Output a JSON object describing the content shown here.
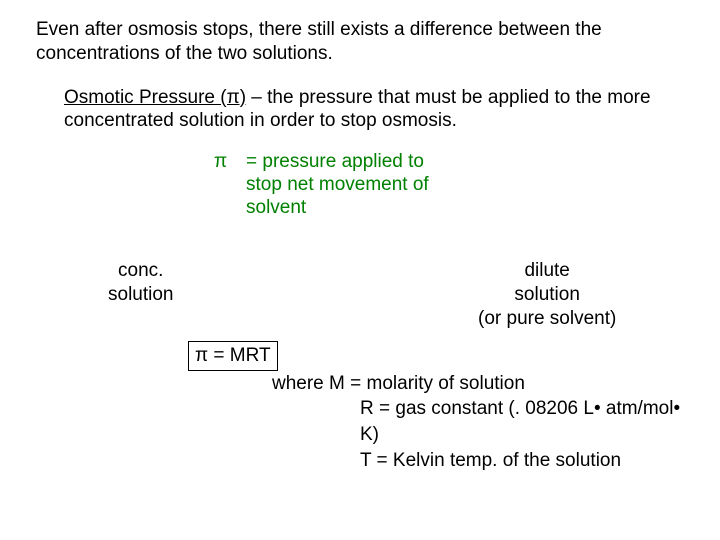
{
  "intro": "Even after osmosis stops, there still exists a difference between the concentrations of the two solutions.",
  "definition": {
    "term": "Osmotic Pressure (π)",
    "rest": " – the pressure that must be applied to the more concentrated solution in order to stop osmosis."
  },
  "diagram": {
    "pi": "π",
    "eq": "=  pressure applied to stop net movement of solvent",
    "conc1": "conc.",
    "conc2": "solution",
    "dilute1": "dilute",
    "dilute2": "solution",
    "dilute3": "(or pure solvent)"
  },
  "formula": {
    "boxed": "π = MRT",
    "where_m": "where M = molarity of solution",
    "where_r": "R = gas constant (. 08206 L• atm/mol• K)",
    "where_t": "T = Kelvin temp. of the solution"
  }
}
